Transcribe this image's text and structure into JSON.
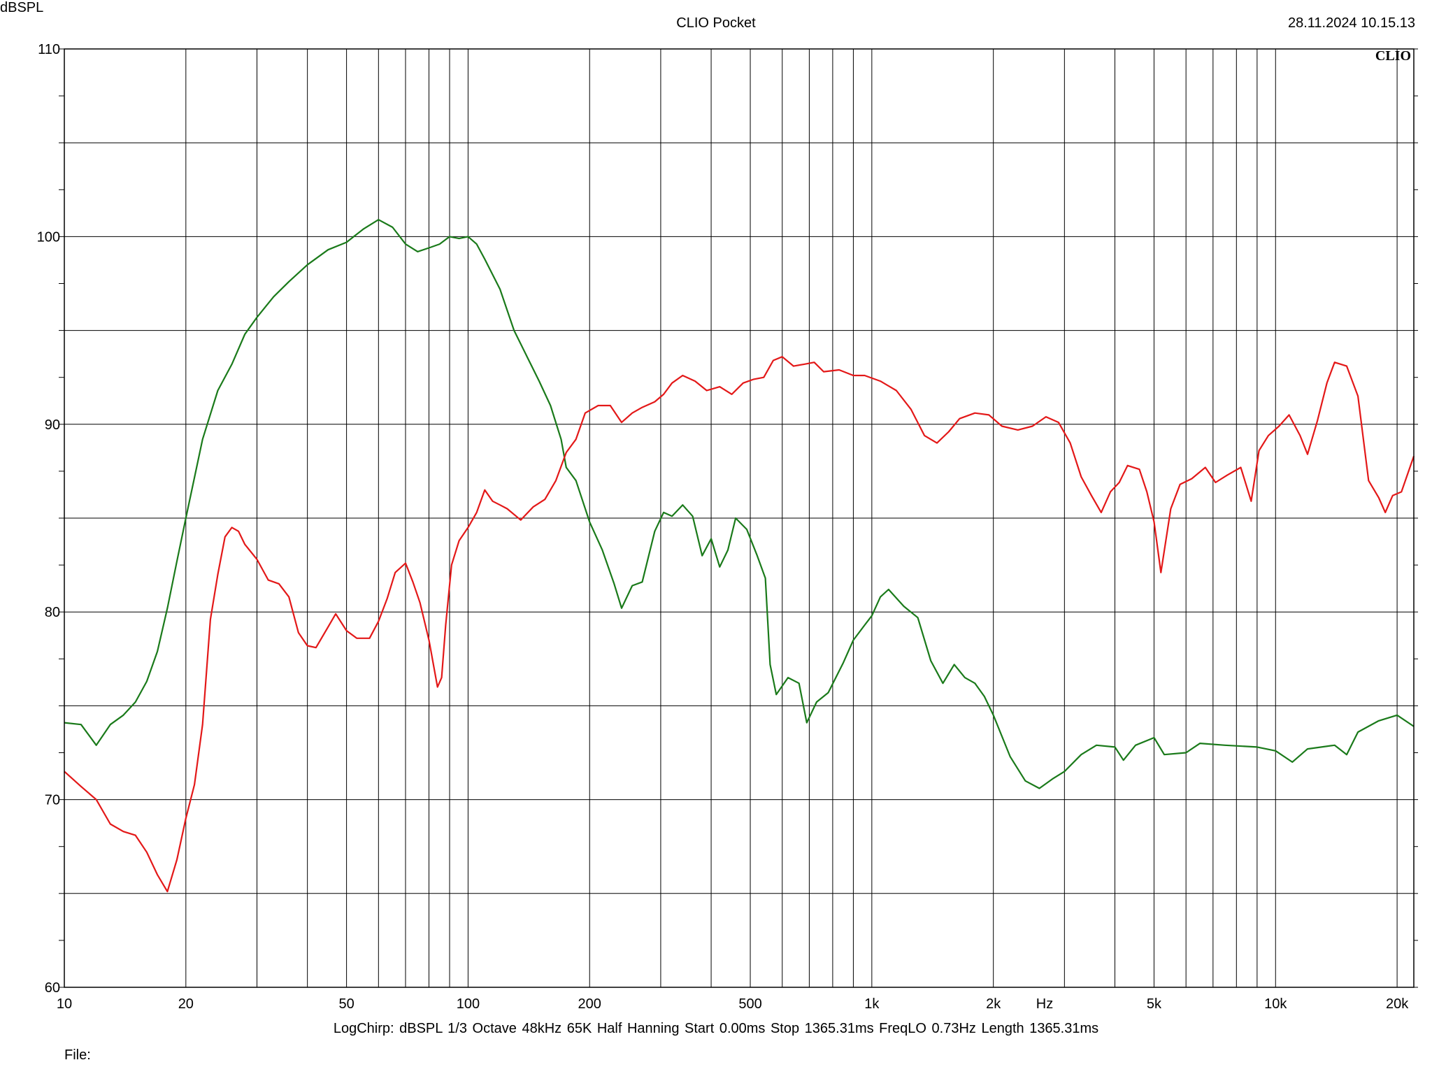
{
  "header": {
    "title": "CLIO Pocket",
    "timestamp": "28.11.2024 10.15.13"
  },
  "logo_text": "CLIO",
  "footer": {
    "info": "LogChirp:  dBSPL   1/3 Octave   48kHz   65K   Half Hanning   Start 0.00ms   Stop 1365.31ms   FreqLO 0.73Hz   Length 1365.31ms",
    "file_label": "File:"
  },
  "chart_data": {
    "type": "line",
    "xscale": "log",
    "xlim": [
      10,
      22000
    ],
    "ylim": [
      60,
      110
    ],
    "grid": true,
    "ylabel": "dBSPL",
    "xlabel": "Hz",
    "y_ticks": [
      60,
      70,
      80,
      90,
      100,
      110
    ],
    "y_minor_grid": [
      65,
      75,
      85,
      95,
      105
    ],
    "x_ticks": [
      {
        "value": 10,
        "label": "10"
      },
      {
        "value": 20,
        "label": "20"
      },
      {
        "value": 50,
        "label": "50"
      },
      {
        "value": 100,
        "label": "100"
      },
      {
        "value": 200,
        "label": "200"
      },
      {
        "value": 500,
        "label": "500"
      },
      {
        "value": 1000,
        "label": "1k"
      },
      {
        "value": 2000,
        "label": "2k"
      },
      {
        "value": 5000,
        "label": "5k"
      },
      {
        "value": 10000,
        "label": "10k"
      },
      {
        "value": 20000,
        "label": "20k"
      }
    ],
    "x_grid": [
      20,
      30,
      40,
      50,
      60,
      70,
      80,
      90,
      100,
      200,
      300,
      400,
      500,
      600,
      700,
      800,
      900,
      1000,
      2000,
      3000,
      4000,
      5000,
      6000,
      7000,
      8000,
      9000,
      10000,
      20000
    ],
    "series": [
      {
        "color": "#1a7a1a",
        "points": [
          [
            10,
            74.1
          ],
          [
            11,
            74.0
          ],
          [
            12,
            72.9
          ],
          [
            13,
            74.0
          ],
          [
            14,
            74.5
          ],
          [
            15,
            75.2
          ],
          [
            16,
            76.3
          ],
          [
            17,
            77.9
          ],
          [
            18,
            80.2
          ],
          [
            19,
            82.7
          ],
          [
            20,
            85.0
          ],
          [
            22,
            89.2
          ],
          [
            24,
            91.8
          ],
          [
            26,
            93.2
          ],
          [
            28,
            94.8
          ],
          [
            30,
            95.7
          ],
          [
            33,
            96.8
          ],
          [
            36,
            97.6
          ],
          [
            40,
            98.5
          ],
          [
            45,
            99.3
          ],
          [
            50,
            99.7
          ],
          [
            55,
            100.4
          ],
          [
            60,
            100.9
          ],
          [
            65,
            100.5
          ],
          [
            70,
            99.6
          ],
          [
            75,
            99.2
          ],
          [
            80,
            99.4
          ],
          [
            85,
            99.6
          ],
          [
            90,
            100.0
          ],
          [
            95,
            99.9
          ],
          [
            100,
            100.0
          ],
          [
            105,
            99.6
          ],
          [
            110,
            98.8
          ],
          [
            120,
            97.2
          ],
          [
            130,
            95.0
          ],
          [
            140,
            93.6
          ],
          [
            150,
            92.3
          ],
          [
            160,
            91.0
          ],
          [
            170,
            89.2
          ],
          [
            175,
            87.7
          ],
          [
            185,
            87.0
          ],
          [
            200,
            84.8
          ],
          [
            215,
            83.3
          ],
          [
            230,
            81.5
          ],
          [
            240,
            80.2
          ],
          [
            255,
            81.4
          ],
          [
            270,
            81.6
          ],
          [
            290,
            84.3
          ],
          [
            305,
            85.3
          ],
          [
            320,
            85.1
          ],
          [
            340,
            85.7
          ],
          [
            360,
            85.1
          ],
          [
            380,
            83.0
          ],
          [
            400,
            83.9
          ],
          [
            420,
            82.4
          ],
          [
            440,
            83.3
          ],
          [
            460,
            85.0
          ],
          [
            490,
            84.4
          ],
          [
            520,
            83.0
          ],
          [
            545,
            81.8
          ],
          [
            560,
            77.2
          ],
          [
            580,
            75.6
          ],
          [
            620,
            76.5
          ],
          [
            660,
            76.2
          ],
          [
            690,
            74.1
          ],
          [
            730,
            75.2
          ],
          [
            780,
            75.7
          ],
          [
            850,
            77.3
          ],
          [
            900,
            78.5
          ],
          [
            960,
            79.3
          ],
          [
            1000,
            79.8
          ],
          [
            1050,
            80.8
          ],
          [
            1100,
            81.2
          ],
          [
            1200,
            80.3
          ],
          [
            1300,
            79.7
          ],
          [
            1400,
            77.4
          ],
          [
            1500,
            76.2
          ],
          [
            1600,
            77.2
          ],
          [
            1700,
            76.5
          ],
          [
            1800,
            76.2
          ],
          [
            1900,
            75.5
          ],
          [
            2000,
            74.5
          ],
          [
            2200,
            72.3
          ],
          [
            2400,
            71.0
          ],
          [
            2600,
            70.6
          ],
          [
            2800,
            71.1
          ],
          [
            3000,
            71.5
          ],
          [
            3300,
            72.4
          ],
          [
            3600,
            72.9
          ],
          [
            4000,
            72.8
          ],
          [
            4200,
            72.1
          ],
          [
            4500,
            72.9
          ],
          [
            5000,
            73.3
          ],
          [
            5300,
            72.4
          ],
          [
            6000,
            72.5
          ],
          [
            6500,
            73.0
          ],
          [
            7500,
            72.9
          ],
          [
            9000,
            72.8
          ],
          [
            10000,
            72.6
          ],
          [
            11000,
            72.0
          ],
          [
            12000,
            72.7
          ],
          [
            14000,
            72.9
          ],
          [
            15000,
            72.4
          ],
          [
            16000,
            73.6
          ],
          [
            18000,
            74.2
          ],
          [
            20000,
            74.5
          ],
          [
            22000,
            73.9
          ]
        ]
      },
      {
        "color": "#e31818",
        "points": [
          [
            10,
            71.5
          ],
          [
            11,
            70.7
          ],
          [
            12,
            70.0
          ],
          [
            13,
            68.7
          ],
          [
            14,
            68.3
          ],
          [
            15,
            68.1
          ],
          [
            16,
            67.2
          ],
          [
            17,
            66.0
          ],
          [
            18,
            65.1
          ],
          [
            19,
            66.8
          ],
          [
            20,
            69.0
          ],
          [
            21,
            70.8
          ],
          [
            22,
            74.0
          ],
          [
            23,
            79.6
          ],
          [
            24,
            82.0
          ],
          [
            25,
            84.0
          ],
          [
            26,
            84.5
          ],
          [
            27,
            84.3
          ],
          [
            28,
            83.6
          ],
          [
            30,
            82.8
          ],
          [
            32,
            81.7
          ],
          [
            34,
            81.5
          ],
          [
            36,
            80.8
          ],
          [
            38,
            78.9
          ],
          [
            40,
            78.2
          ],
          [
            42,
            78.1
          ],
          [
            45,
            79.2
          ],
          [
            47,
            79.9
          ],
          [
            50,
            79.0
          ],
          [
            53,
            78.6
          ],
          [
            57,
            78.6
          ],
          [
            60,
            79.5
          ],
          [
            63,
            80.7
          ],
          [
            66,
            82.1
          ],
          [
            70,
            82.6
          ],
          [
            73,
            81.6
          ],
          [
            76,
            80.5
          ],
          [
            80,
            78.5
          ],
          [
            84,
            76.0
          ],
          [
            86,
            76.5
          ],
          [
            88,
            79.3
          ],
          [
            91,
            82.5
          ],
          [
            95,
            83.8
          ],
          [
            100,
            84.5
          ],
          [
            105,
            85.3
          ],
          [
            110,
            86.5
          ],
          [
            115,
            85.9
          ],
          [
            120,
            85.7
          ],
          [
            125,
            85.5
          ],
          [
            135,
            84.9
          ],
          [
            145,
            85.6
          ],
          [
            155,
            86.0
          ],
          [
            165,
            87.0
          ],
          [
            175,
            88.5
          ],
          [
            185,
            89.2
          ],
          [
            195,
            90.6
          ],
          [
            210,
            91.0
          ],
          [
            225,
            91.0
          ],
          [
            240,
            90.1
          ],
          [
            255,
            90.6
          ],
          [
            270,
            90.9
          ],
          [
            290,
            91.2
          ],
          [
            305,
            91.6
          ],
          [
            320,
            92.2
          ],
          [
            340,
            92.6
          ],
          [
            365,
            92.3
          ],
          [
            390,
            91.8
          ],
          [
            420,
            92.0
          ],
          [
            450,
            91.6
          ],
          [
            480,
            92.2
          ],
          [
            510,
            92.4
          ],
          [
            540,
            92.5
          ],
          [
            570,
            93.4
          ],
          [
            600,
            93.6
          ],
          [
            640,
            93.1
          ],
          [
            680,
            93.2
          ],
          [
            720,
            93.3
          ],
          [
            760,
            92.8
          ],
          [
            830,
            92.9
          ],
          [
            900,
            92.6
          ],
          [
            960,
            92.6
          ],
          [
            1050,
            92.3
          ],
          [
            1150,
            91.8
          ],
          [
            1250,
            90.8
          ],
          [
            1350,
            89.4
          ],
          [
            1450,
            89.0
          ],
          [
            1550,
            89.6
          ],
          [
            1650,
            90.3
          ],
          [
            1800,
            90.6
          ],
          [
            1950,
            90.5
          ],
          [
            2100,
            89.9
          ],
          [
            2300,
            89.7
          ],
          [
            2500,
            89.9
          ],
          [
            2700,
            90.4
          ],
          [
            2900,
            90.1
          ],
          [
            3100,
            89.0
          ],
          [
            3300,
            87.2
          ],
          [
            3500,
            86.2
          ],
          [
            3700,
            85.3
          ],
          [
            3900,
            86.4
          ],
          [
            4100,
            86.9
          ],
          [
            4300,
            87.8
          ],
          [
            4600,
            87.6
          ],
          [
            4800,
            86.4
          ],
          [
            5000,
            84.8
          ],
          [
            5200,
            82.1
          ],
          [
            5500,
            85.5
          ],
          [
            5800,
            86.8
          ],
          [
            6200,
            87.1
          ],
          [
            6700,
            87.7
          ],
          [
            7100,
            86.9
          ],
          [
            7600,
            87.3
          ],
          [
            8200,
            87.7
          ],
          [
            8700,
            85.9
          ],
          [
            9100,
            88.6
          ],
          [
            9600,
            89.4
          ],
          [
            10200,
            89.9
          ],
          [
            10800,
            90.5
          ],
          [
            11500,
            89.4
          ],
          [
            12000,
            88.4
          ],
          [
            12700,
            90.2
          ],
          [
            13400,
            92.2
          ],
          [
            14000,
            93.3
          ],
          [
            15000,
            93.1
          ],
          [
            16000,
            91.5
          ],
          [
            17000,
            87.0
          ],
          [
            18000,
            86.1
          ],
          [
            18700,
            85.3
          ],
          [
            19500,
            86.2
          ],
          [
            20500,
            86.4
          ],
          [
            22000,
            88.3
          ]
        ]
      }
    ]
  }
}
